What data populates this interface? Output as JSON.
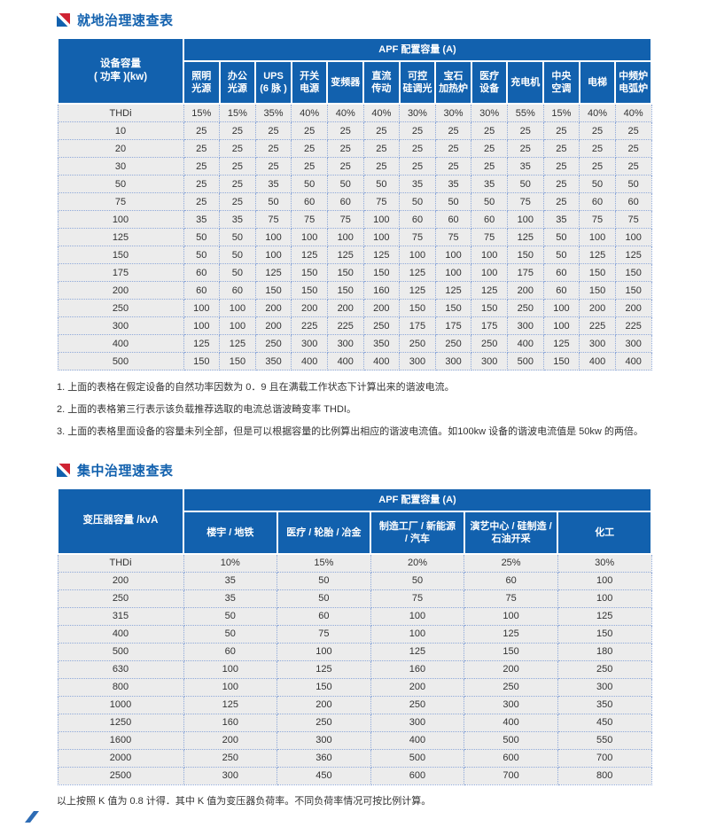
{
  "colors": {
    "header_blue": "#1261ae",
    "accent_red": "#cf2332",
    "row_bg": "#ececec",
    "dotted_border": "#8fa9d9"
  },
  "section1": {
    "title": "就地治理速查表",
    "table": {
      "corner_lines": [
        "设备容量",
        "( 功率 )(kw)"
      ],
      "group_header": "APF 配置容量 (A)",
      "columns": [
        [
          "照明",
          "光源"
        ],
        [
          "办公",
          "光源"
        ],
        [
          "UPS",
          "(6 脉 )"
        ],
        [
          "开关",
          "电源"
        ],
        [
          "变频器"
        ],
        [
          "直流",
          "传动"
        ],
        [
          "可控",
          "硅调光"
        ],
        [
          "宝石",
          "加热炉"
        ],
        [
          "医疗",
          "设备"
        ],
        [
          "充电机"
        ],
        [
          "中央",
          "空调"
        ],
        [
          "电梯"
        ],
        [
          "中频炉",
          "电弧炉"
        ]
      ],
      "rows": [
        [
          "THDi",
          "15%",
          "15%",
          "35%",
          "40%",
          "40%",
          "40%",
          "30%",
          "30%",
          "30%",
          "55%",
          "15%",
          "40%",
          "40%"
        ],
        [
          "10",
          "25",
          "25",
          "25",
          "25",
          "25",
          "25",
          "25",
          "25",
          "25",
          "25",
          "25",
          "25",
          "25"
        ],
        [
          "20",
          "25",
          "25",
          "25",
          "25",
          "25",
          "25",
          "25",
          "25",
          "25",
          "25",
          "25",
          "25",
          "25"
        ],
        [
          "30",
          "25",
          "25",
          "25",
          "25",
          "25",
          "25",
          "25",
          "25",
          "25",
          "35",
          "25",
          "25",
          "25"
        ],
        [
          "50",
          "25",
          "25",
          "35",
          "50",
          "50",
          "50",
          "35",
          "35",
          "35",
          "50",
          "25",
          "50",
          "50"
        ],
        [
          "75",
          "25",
          "25",
          "50",
          "60",
          "60",
          "75",
          "50",
          "50",
          "50",
          "75",
          "25",
          "60",
          "60"
        ],
        [
          "100",
          "35",
          "35",
          "75",
          "75",
          "75",
          "100",
          "60",
          "60",
          "60",
          "100",
          "35",
          "75",
          "75"
        ],
        [
          "125",
          "50",
          "50",
          "100",
          "100",
          "100",
          "100",
          "75",
          "75",
          "75",
          "125",
          "50",
          "100",
          "100"
        ],
        [
          "150",
          "50",
          "50",
          "100",
          "125",
          "125",
          "125",
          "100",
          "100",
          "100",
          "150",
          "50",
          "125",
          "125"
        ],
        [
          "175",
          "60",
          "50",
          "125",
          "150",
          "150",
          "150",
          "125",
          "100",
          "100",
          "175",
          "60",
          "150",
          "150"
        ],
        [
          "200",
          "60",
          "60",
          "150",
          "150",
          "150",
          "160",
          "125",
          "125",
          "125",
          "200",
          "60",
          "150",
          "150"
        ],
        [
          "250",
          "100",
          "100",
          "200",
          "200",
          "200",
          "200",
          "150",
          "150",
          "150",
          "250",
          "100",
          "200",
          "200"
        ],
        [
          "300",
          "100",
          "100",
          "200",
          "225",
          "225",
          "250",
          "175",
          "175",
          "175",
          "300",
          "100",
          "225",
          "225"
        ],
        [
          "400",
          "125",
          "125",
          "250",
          "300",
          "300",
          "350",
          "250",
          "250",
          "250",
          "400",
          "125",
          "300",
          "300"
        ],
        [
          "500",
          "150",
          "150",
          "350",
          "400",
          "400",
          "400",
          "300",
          "300",
          "300",
          "500",
          "150",
          "400",
          "400"
        ]
      ]
    },
    "notes": [
      "1. 上面的表格在假定设备的自然功率因数为 0．9 且在满载工作状态下计算出来的谐波电流。",
      "2. 上面的表格第三行表示该负载推荐选取的电流总谐波畸变率 THDI。",
      "3. 上面的表格里面设备的容量未列全部，但是可以根据容量的比例算出相应的谐波电流值。如100kw 设备的谐波电流值是 50kw 的两倍。"
    ]
  },
  "section2": {
    "title": "集中治理速查表",
    "table": {
      "corner_lines": [
        "变压器容量 /kvA"
      ],
      "group_header": "APF 配置容量 (A)",
      "columns": [
        [
          "楼宇 / 地铁"
        ],
        [
          "医疗 / 轮胎 / 冶金"
        ],
        [
          "制造工厂 / 新能源",
          "/ 汽车"
        ],
        [
          "演艺中心 / 硅制造 /",
          "石油开采"
        ],
        [
          "化工"
        ]
      ],
      "rows": [
        [
          "THDi",
          "10%",
          "15%",
          "20%",
          "25%",
          "30%"
        ],
        [
          "200",
          "35",
          "50",
          "50",
          "60",
          "100"
        ],
        [
          "250",
          "35",
          "50",
          "75",
          "75",
          "100"
        ],
        [
          "315",
          "50",
          "60",
          "100",
          "100",
          "125"
        ],
        [
          "400",
          "50",
          "75",
          "100",
          "125",
          "150"
        ],
        [
          "500",
          "60",
          "100",
          "125",
          "150",
          "180"
        ],
        [
          "630",
          "100",
          "125",
          "160",
          "200",
          "250"
        ],
        [
          "800",
          "100",
          "150",
          "200",
          "250",
          "300"
        ],
        [
          "1000",
          "125",
          "200",
          "250",
          "300",
          "350"
        ],
        [
          "1250",
          "160",
          "250",
          "300",
          "400",
          "450"
        ],
        [
          "1600",
          "200",
          "300",
          "400",
          "500",
          "550"
        ],
        [
          "2000",
          "250",
          "360",
          "500",
          "600",
          "700"
        ],
        [
          "2500",
          "300",
          "450",
          "600",
          "700",
          "800"
        ]
      ]
    },
    "note": "以上按照 K 值为 0.8 计得．其中 K 值为变压器负荷率。不同负荷率情况可按比例计算。"
  }
}
